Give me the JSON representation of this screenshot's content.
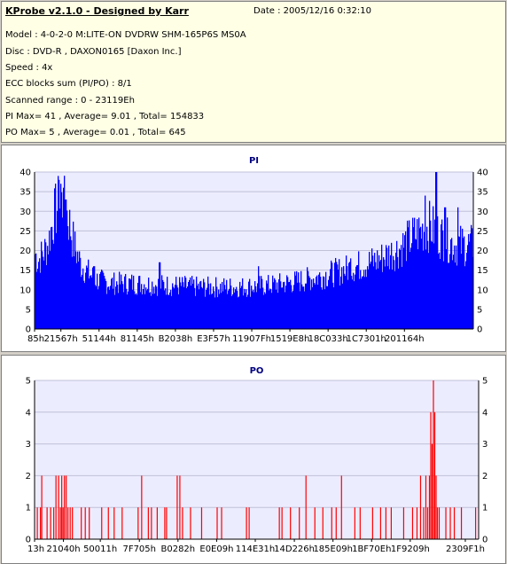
{
  "header": {
    "title": "KProbe v2.1.0 - Designed by Karr",
    "date": "Date : 2005/12/16 0:32:10",
    "lines": [
      "Model : 4-0-2-0 M:LITE-ON DVDRW SHM-165P6S MS0A",
      "Disc : DVD-R , DAXON0165 [Daxon Inc.]",
      "Speed : 4x",
      "ECC blocks sum (PI/PO) : 8/1",
      "Scanned range : 0 - 23119Eh",
      "PI Max= 41 , Average= 9.01 , Total= 154833",
      "PO Max= 5 , Average= 0.01 , Total= 645"
    ]
  },
  "colors": {
    "pi": "#0000ff",
    "po": "#ff0000",
    "plot_bg": "#ececff",
    "grid": "#c0c0d8"
  },
  "chart_data": [
    {
      "type": "bar",
      "title": "PI",
      "ylim": [
        0,
        40
      ],
      "yticks": [
        0,
        5,
        10,
        15,
        20,
        25,
        30,
        35,
        40
      ],
      "xlim": [
        0,
        1000
      ],
      "xtick_labels": [
        "85h",
        "21567h",
        "51144h",
        "81145h",
        "B2038h",
        "E3F57h",
        "11907Fh",
        "1519E8h",
        "18C033h",
        "1C7301h",
        "201164h"
      ],
      "xtick_pos": [
        0,
        60,
        147,
        234,
        321,
        408,
        495,
        582,
        669,
        756,
        843
      ],
      "profile": [
        [
          0,
          20
        ],
        [
          8,
          18
        ],
        [
          20,
          20
        ],
        [
          30,
          22
        ],
        [
          45,
          30
        ],
        [
          55,
          33
        ],
        [
          65,
          33
        ],
        [
          75,
          30
        ],
        [
          90,
          22
        ],
        [
          105,
          17
        ],
        [
          120,
          15
        ],
        [
          140,
          13
        ],
        [
          170,
          12
        ],
        [
          220,
          12
        ],
        [
          300,
          11.5
        ],
        [
          380,
          11
        ],
        [
          470,
          11
        ],
        [
          540,
          11.5
        ],
        [
          600,
          12.5
        ],
        [
          660,
          14
        ],
        [
          720,
          16
        ],
        [
          780,
          18
        ],
        [
          830,
          21
        ],
        [
          870,
          25
        ],
        [
          900,
          27
        ],
        [
          930,
          24
        ],
        [
          960,
          22
        ],
        [
          1000,
          22
        ]
      ],
      "peaks": [
        [
          55,
          38
        ],
        [
          60,
          37
        ],
        [
          66,
          36
        ],
        [
          71,
          33
        ],
        [
          135,
          16
        ],
        [
          285,
          17
        ],
        [
          510,
          16
        ],
        [
          720,
          18
        ],
        [
          890,
          34
        ],
        [
          915,
          41
        ],
        [
          935,
          31
        ],
        [
          965,
          31
        ]
      ],
      "stats": {
        "max": 41,
        "average": 9.01,
        "total": 154833
      }
    },
    {
      "type": "bar",
      "title": "PO",
      "ylim": [
        0,
        5
      ],
      "yticks": [
        0,
        1,
        2,
        3,
        4,
        5
      ],
      "xlim": [
        0,
        1000
      ],
      "xtick_labels": [
        "13h",
        "21040h",
        "50011h",
        "7F705h",
        "B0282h",
        "E0E09h",
        "114E31h",
        "14D226h",
        "185E09h",
        "1BF70Eh",
        "1F9209h",
        "2309F1h"
      ],
      "xtick_pos": [
        0,
        65,
        148,
        236,
        323,
        410,
        497,
        585,
        672,
        759,
        846,
        970
      ],
      "bars": [
        [
          5,
          1
        ],
        [
          12,
          1
        ],
        [
          15,
          2
        ],
        [
          27,
          1
        ],
        [
          35,
          1
        ],
        [
          42,
          1
        ],
        [
          47,
          2
        ],
        [
          53,
          2
        ],
        [
          57,
          1
        ],
        [
          60,
          2
        ],
        [
          63,
          1
        ],
        [
          66,
          2
        ],
        [
          70,
          2
        ],
        [
          74,
          1
        ],
        [
          79,
          1
        ],
        [
          84,
          1
        ],
        [
          104,
          1
        ],
        [
          113,
          1
        ],
        [
          122,
          1
        ],
        [
          150,
          1
        ],
        [
          165,
          1
        ],
        [
          178,
          1
        ],
        [
          196,
          1
        ],
        [
          232,
          1
        ],
        [
          240,
          2
        ],
        [
          255,
          1
        ],
        [
          262,
          1
        ],
        [
          275,
          1
        ],
        [
          292,
          1
        ],
        [
          296,
          1
        ],
        [
          320,
          2
        ],
        [
          326,
          2
        ],
        [
          332,
          1
        ],
        [
          350,
          1
        ],
        [
          375,
          1
        ],
        [
          410,
          1
        ],
        [
          420,
          1
        ],
        [
          476,
          1
        ],
        [
          482,
          1
        ],
        [
          550,
          1
        ],
        [
          556,
          1
        ],
        [
          575,
          1
        ],
        [
          595,
          1
        ],
        [
          610,
          2
        ],
        [
          630,
          1
        ],
        [
          648,
          1
        ],
        [
          668,
          1
        ],
        [
          678,
          1
        ],
        [
          690,
          2
        ],
        [
          720,
          1
        ],
        [
          732,
          1
        ],
        [
          760,
          1
        ],
        [
          778,
          1
        ],
        [
          790,
          1
        ],
        [
          802,
          1
        ],
        [
          830,
          1
        ],
        [
          850,
          1
        ],
        [
          860,
          1
        ],
        [
          868,
          2
        ],
        [
          875,
          1
        ],
        [
          880,
          2
        ],
        [
          884,
          1
        ],
        [
          888,
          2
        ],
        [
          891,
          4
        ],
        [
          894,
          3
        ],
        [
          897,
          5
        ],
        [
          900,
          4
        ],
        [
          903,
          2
        ],
        [
          906,
          1
        ],
        [
          910,
          1
        ],
        [
          925,
          1
        ],
        [
          935,
          1
        ],
        [
          944,
          1
        ],
        [
          960,
          1
        ],
        [
          992,
          1
        ]
      ],
      "stats": {
        "max": 5,
        "average": 0.01,
        "total": 645
      }
    }
  ]
}
